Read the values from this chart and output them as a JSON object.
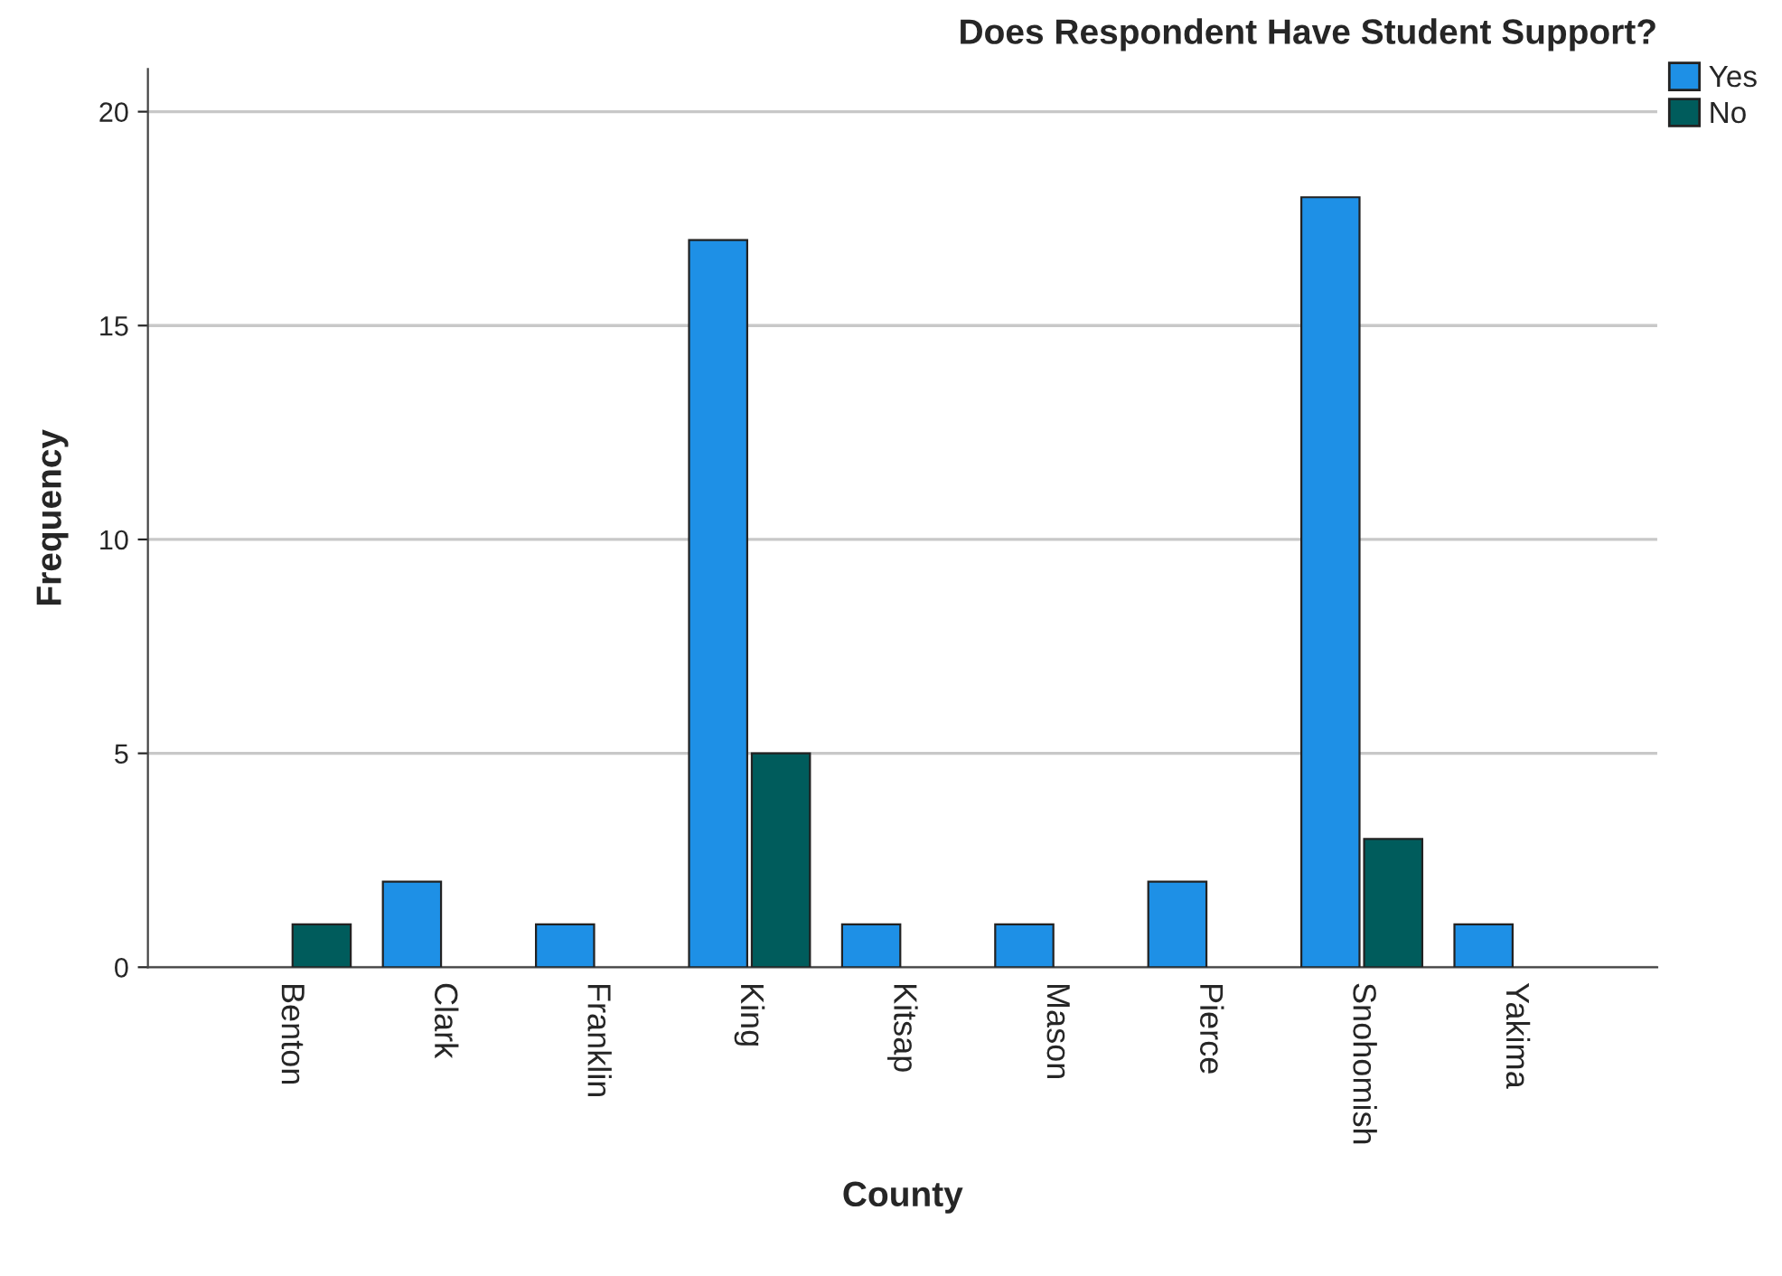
{
  "chart_data": {
    "type": "bar",
    "title": "Does Respondent Have Student Support?",
    "xlabel": "County",
    "ylabel": "Frequency",
    "categories": [
      "Benton",
      "Clark",
      "Franklin",
      "King",
      "Kitsap",
      "Mason",
      "Pierce",
      "Snohomish",
      "Yakima"
    ],
    "series": [
      {
        "name": "Yes",
        "color": "#1e90e6",
        "values": [
          null,
          2,
          1,
          17,
          1,
          1,
          2,
          18,
          1
        ]
      },
      {
        "name": "No",
        "color": "#005c5c",
        "values": [
          1,
          null,
          null,
          5,
          null,
          null,
          null,
          3,
          null
        ]
      }
    ],
    "ylim": [
      0,
      21
    ],
    "yticks": [
      0,
      5,
      10,
      15,
      20
    ],
    "grid": "y",
    "legend": "top right"
  }
}
